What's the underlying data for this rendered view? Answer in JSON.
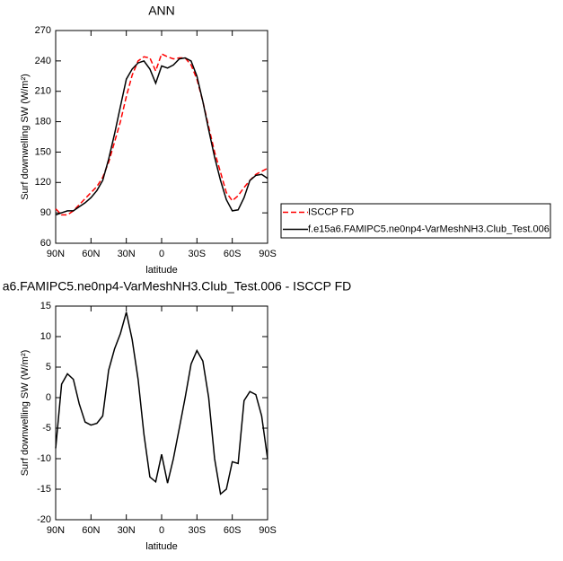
{
  "chart_data": [
    {
      "type": "line",
      "title": "ANN",
      "x_label": "latitude",
      "y_label": "Surf downwelling SW (W/m²)",
      "x": [
        90,
        85,
        80,
        75,
        70,
        65,
        60,
        55,
        50,
        45,
        40,
        35,
        30,
        25,
        20,
        15,
        10,
        5,
        0,
        -5,
        -10,
        -15,
        -20,
        -25,
        -30,
        -35,
        -40,
        -45,
        -50,
        -55,
        -60,
        -65,
        -70,
        -75,
        -80,
        -85,
        -90
      ],
      "xlim": [
        90,
        -90
      ],
      "xticks": [
        {
          "value": 90,
          "label": "90N"
        },
        {
          "value": 60,
          "label": "60N"
        },
        {
          "value": 30,
          "label": "30N"
        },
        {
          "value": 0,
          "label": "0"
        },
        {
          "value": -30,
          "label": "30S"
        },
        {
          "value": -60,
          "label": "60S"
        },
        {
          "value": -90,
          "label": "90S"
        }
      ],
      "ylim": [
        60,
        270
      ],
      "yticks": [
        60,
        90,
        120,
        150,
        180,
        210,
        240,
        270
      ],
      "series": [
        {
          "name": "ISCCP FD",
          "color": "#ff0000",
          "dashed": true,
          "values": [
            94,
            88,
            88,
            92,
            98,
            104,
            110,
            116,
            125,
            140,
            160,
            180,
            205,
            226,
            240,
            244,
            243,
            230,
            247,
            244,
            242,
            243,
            243,
            236,
            222,
            200,
            175,
            150,
            130,
            110,
            102,
            107,
            115,
            122,
            128,
            131,
            134
          ]
        },
        {
          "name": "f.e15a6.FAMIPC5.ne0np4-VarMeshNH3.Club_Test.006",
          "color": "#000000",
          "dashed": false,
          "values": [
            88,
            90,
            92,
            92,
            96,
            100,
            105,
            112,
            122,
            143,
            168,
            195,
            222,
            232,
            238,
            240,
            232,
            218,
            235,
            233,
            236,
            242,
            243,
            240,
            225,
            200,
            172,
            145,
            122,
            103,
            92,
            93,
            105,
            122,
            127,
            128,
            124
          ]
        }
      ]
    },
    {
      "type": "line",
      "title": "a6.FAMIPC5.ne0np4-VarMeshNH3.Club_Test.006 - ISCCP FD",
      "x_label": "latitude",
      "y_label": "Surf downwelling SW (W/m²)",
      "x": [
        90,
        85,
        80,
        75,
        70,
        65,
        60,
        55,
        50,
        45,
        40,
        35,
        30,
        25,
        20,
        15,
        10,
        5,
        0,
        -5,
        -10,
        -15,
        -20,
        -25,
        -30,
        -35,
        -40,
        -45,
        -50,
        -55,
        -60,
        -65,
        -70,
        -75,
        -80,
        -85,
        -90
      ],
      "xlim": [
        90,
        -90
      ],
      "xticks": [
        {
          "value": 90,
          "label": "90N"
        },
        {
          "value": 60,
          "label": "60N"
        },
        {
          "value": 30,
          "label": "30N"
        },
        {
          "value": 0,
          "label": "0"
        },
        {
          "value": -30,
          "label": "30S"
        },
        {
          "value": -60,
          "label": "60S"
        },
        {
          "value": -90,
          "label": "90S"
        }
      ],
      "ylim": [
        -20,
        15
      ],
      "yticks": [
        -20,
        -15,
        -10,
        -5,
        0,
        5,
        10,
        15
      ],
      "series": [
        {
          "color": "#000000",
          "dashed": false,
          "values": [
            -8.3,
            2.2,
            3.9,
            3,
            -1,
            -4,
            -4.5,
            -4.2,
            -3,
            4.5,
            8,
            10.5,
            14,
            9.5,
            3,
            -6,
            -13,
            -13.8,
            -9.3,
            -14,
            -10,
            -5,
            0,
            5.5,
            7.7,
            6,
            0,
            -10,
            -15.8,
            -15,
            -10.5,
            -10.8,
            -0.5,
            1,
            0.5,
            -3,
            -10
          ]
        }
      ]
    }
  ]
}
